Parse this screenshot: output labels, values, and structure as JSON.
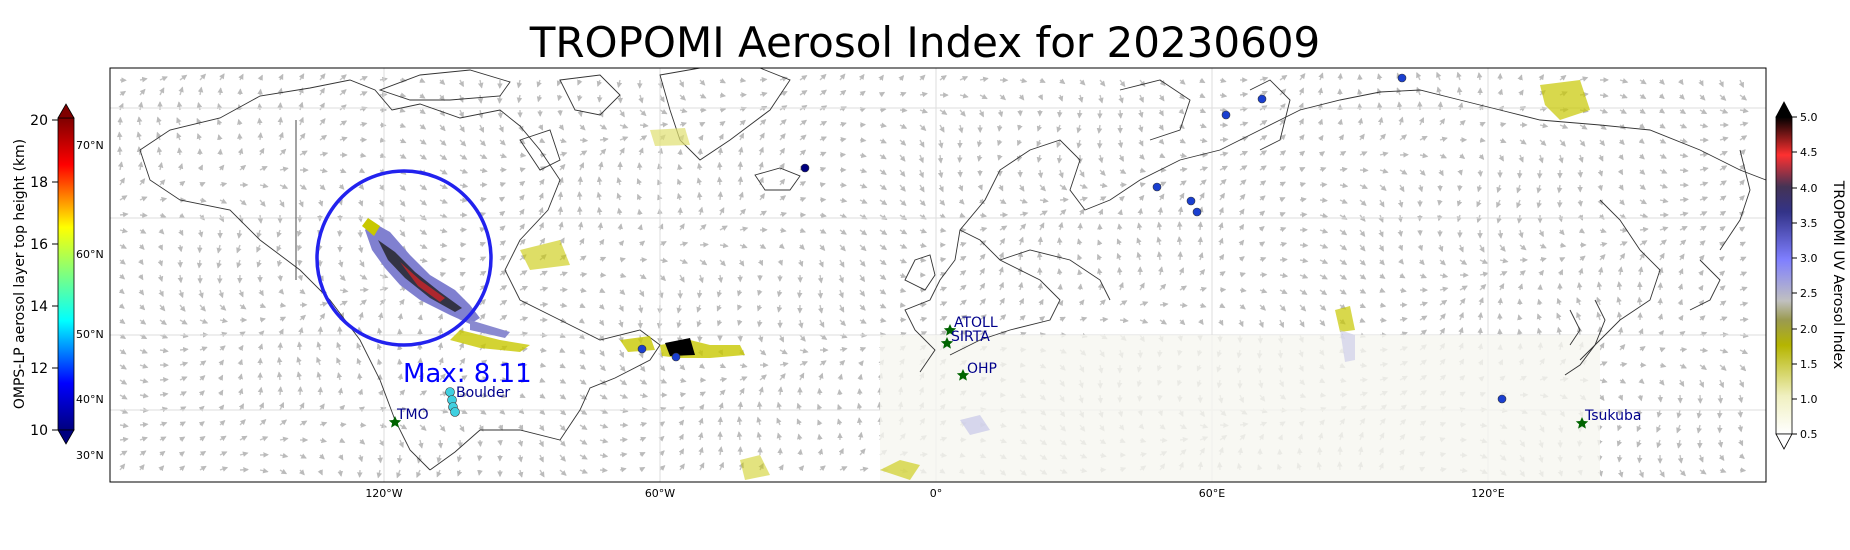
{
  "title": "TROPOMI Aerosol Index for 20230609",
  "left_colorbar": {
    "label": "OMPS-LP aerosol layer top height (km)",
    "ticks": [
      "10",
      "12",
      "14",
      "16",
      "18",
      "20"
    ]
  },
  "right_colorbar": {
    "label": "TROPOMI UV Aerosol Index",
    "ticks": [
      "0.5",
      "1.0",
      "1.5",
      "2.0",
      "2.5",
      "3.0",
      "3.5",
      "4.0",
      "4.5",
      "5.0"
    ]
  },
  "lon_ticks": [
    "120°W",
    "60°W",
    "0°",
    "60°E",
    "120°E"
  ],
  "lat_ticks": [
    "30°N",
    "40°N",
    "50°N",
    "60°N",
    "70°N"
  ],
  "max_label": "Max: 8.11",
  "sites": [
    "TMO",
    "Boulder",
    "ATOLL",
    "SIRTA",
    "OHP",
    "Tsukuba"
  ],
  "colors": {
    "circle": "#2222ee",
    "station": "#006400",
    "label": "#00008b",
    "max": "#0000ff"
  }
}
